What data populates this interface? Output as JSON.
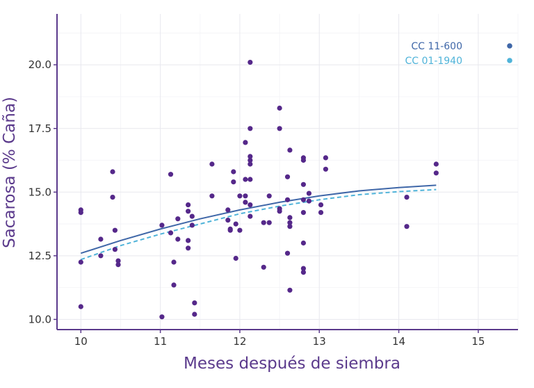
{
  "chart_data": {
    "type": "scatter",
    "title": "",
    "xlabel": "Meses después de siembra",
    "ylabel": "Sacarosa (% Caña)",
    "xlim": [
      9.7,
      15.5
    ],
    "ylim": [
      9.6,
      22.0
    ],
    "x_ticks": [
      10,
      11,
      12,
      13,
      14,
      15
    ],
    "y_ticks": [
      10.0,
      12.5,
      15.0,
      17.5,
      20.0
    ],
    "x_tick_labels": [
      "10",
      "11",
      "12",
      "13",
      "14",
      "15"
    ],
    "y_tick_labels": [
      "10.0",
      "12.5",
      "15.0",
      "17.5",
      "20.0"
    ],
    "grid": true,
    "legend_position": "top-right",
    "colors": {
      "points": "#55288a",
      "axis": "#5b3a8c"
    },
    "series": [
      {
        "name": "CC  11-600",
        "kind": "fit-solid",
        "color": "#3f67a8",
        "x": [
          10.0,
          10.5,
          11.0,
          11.5,
          12.0,
          12.5,
          13.0,
          13.5,
          14.0,
          14.47
        ],
        "y": [
          12.6,
          13.1,
          13.55,
          13.95,
          14.3,
          14.6,
          14.85,
          15.05,
          15.18,
          15.27
        ]
      },
      {
        "name": "CC 01-1940",
        "kind": "fit-dashed",
        "color": "#4fb3d9",
        "x": [
          10.0,
          10.5,
          11.0,
          11.5,
          12.0,
          12.5,
          13.0,
          13.5,
          14.0,
          14.47
        ],
        "y": [
          12.35,
          12.9,
          13.35,
          13.75,
          14.15,
          14.45,
          14.7,
          14.9,
          15.02,
          15.1
        ]
      }
    ],
    "points": [
      {
        "x": 10.0,
        "y": 14.3
      },
      {
        "x": 10.0,
        "y": 14.2
      },
      {
        "x": 10.0,
        "y": 12.25
      },
      {
        "x": 10.0,
        "y": 10.5
      },
      {
        "x": 10.25,
        "y": 13.15
      },
      {
        "x": 10.25,
        "y": 12.5
      },
      {
        "x": 10.4,
        "y": 15.8
      },
      {
        "x": 10.4,
        "y": 14.8
      },
      {
        "x": 10.43,
        "y": 13.5
      },
      {
        "x": 10.43,
        "y": 12.75
      },
      {
        "x": 10.47,
        "y": 12.3
      },
      {
        "x": 10.47,
        "y": 12.15
      },
      {
        "x": 11.02,
        "y": 13.7
      },
      {
        "x": 11.02,
        "y": 10.1
      },
      {
        "x": 11.13,
        "y": 15.7
      },
      {
        "x": 11.13,
        "y": 13.4
      },
      {
        "x": 11.17,
        "y": 12.25
      },
      {
        "x": 11.17,
        "y": 11.35
      },
      {
        "x": 11.22,
        "y": 13.95
      },
      {
        "x": 11.22,
        "y": 13.15
      },
      {
        "x": 11.35,
        "y": 14.5
      },
      {
        "x": 11.35,
        "y": 14.25
      },
      {
        "x": 11.35,
        "y": 13.1
      },
      {
        "x": 11.35,
        "y": 12.8
      },
      {
        "x": 11.4,
        "y": 14.05
      },
      {
        "x": 11.4,
        "y": 13.7
      },
      {
        "x": 11.43,
        "y": 10.65
      },
      {
        "x": 11.43,
        "y": 10.2
      },
      {
        "x": 11.65,
        "y": 16.1
      },
      {
        "x": 11.65,
        "y": 14.85
      },
      {
        "x": 11.85,
        "y": 14.3
      },
      {
        "x": 11.85,
        "y": 13.9
      },
      {
        "x": 11.88,
        "y": 13.55
      },
      {
        "x": 11.88,
        "y": 13.5
      },
      {
        "x": 11.92,
        "y": 15.8
      },
      {
        "x": 11.92,
        "y": 15.4
      },
      {
        "x": 11.95,
        "y": 13.75
      },
      {
        "x": 11.95,
        "y": 12.4
      },
      {
        "x": 12.0,
        "y": 14.85
      },
      {
        "x": 12.0,
        "y": 13.5
      },
      {
        "x": 12.07,
        "y": 16.95
      },
      {
        "x": 12.07,
        "y": 15.5
      },
      {
        "x": 12.07,
        "y": 14.85
      },
      {
        "x": 12.07,
        "y": 14.6
      },
      {
        "x": 12.13,
        "y": 20.1
      },
      {
        "x": 12.13,
        "y": 17.5
      },
      {
        "x": 12.13,
        "y": 16.4
      },
      {
        "x": 12.13,
        "y": 16.25
      },
      {
        "x": 12.13,
        "y": 16.1
      },
      {
        "x": 12.13,
        "y": 15.5
      },
      {
        "x": 12.13,
        "y": 14.5
      },
      {
        "x": 12.13,
        "y": 14.05
      },
      {
        "x": 12.3,
        "y": 13.8
      },
      {
        "x": 12.3,
        "y": 12.05
      },
      {
        "x": 12.37,
        "y": 14.85
      },
      {
        "x": 12.37,
        "y": 13.8
      },
      {
        "x": 12.5,
        "y": 18.3
      },
      {
        "x": 12.5,
        "y": 17.5
      },
      {
        "x": 12.5,
        "y": 14.35
      },
      {
        "x": 12.5,
        "y": 14.25
      },
      {
        "x": 12.6,
        "y": 15.6
      },
      {
        "x": 12.6,
        "y": 14.7
      },
      {
        "x": 12.6,
        "y": 12.6
      },
      {
        "x": 12.63,
        "y": 16.65
      },
      {
        "x": 12.63,
        "y": 14.0
      },
      {
        "x": 12.63,
        "y": 13.8
      },
      {
        "x": 12.63,
        "y": 13.65
      },
      {
        "x": 12.63,
        "y": 11.15
      },
      {
        "x": 12.8,
        "y": 16.35
      },
      {
        "x": 12.8,
        "y": 16.25
      },
      {
        "x": 12.8,
        "y": 15.3
      },
      {
        "x": 12.8,
        "y": 14.7
      },
      {
        "x": 12.8,
        "y": 14.2
      },
      {
        "x": 12.8,
        "y": 13.0
      },
      {
        "x": 12.8,
        "y": 12.0
      },
      {
        "x": 12.8,
        "y": 11.85
      },
      {
        "x": 12.87,
        "y": 14.95
      },
      {
        "x": 12.87,
        "y": 14.65
      },
      {
        "x": 13.02,
        "y": 14.5
      },
      {
        "x": 13.02,
        "y": 14.2
      },
      {
        "x": 13.08,
        "y": 16.35
      },
      {
        "x": 13.08,
        "y": 15.9
      },
      {
        "x": 14.1,
        "y": 14.8
      },
      {
        "x": 14.1,
        "y": 13.65
      },
      {
        "x": 14.47,
        "y": 16.1
      },
      {
        "x": 14.47,
        "y": 15.75
      }
    ]
  }
}
